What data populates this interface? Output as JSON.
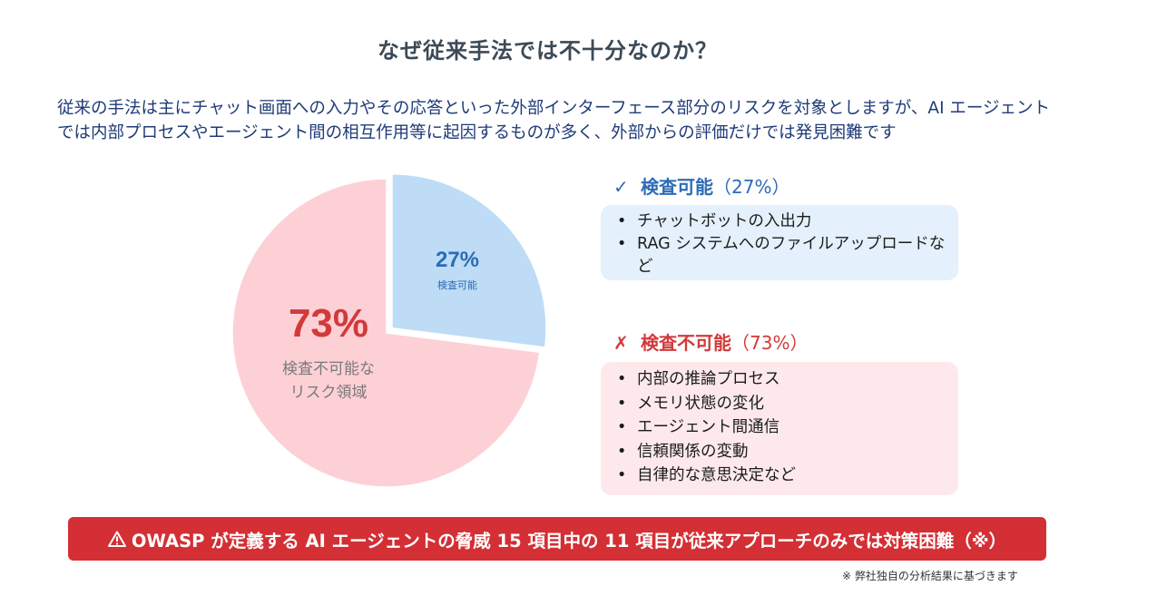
{
  "title": "なぜ従来手法では不十分なのか？",
  "lead": {
    "line1": "従来の手法は主にチャット画面への入力やその応答といった外部インターフェース部分のリスクを対象としますが、AI エージェント",
    "line2": "では内部プロセスやエージェント間の相互作用等に起因するものが多く、外部からの評価だけでは発見困難です"
  },
  "chart_data": {
    "type": "pie",
    "slices": [
      {
        "label": "検査可能",
        "value": 27,
        "value_label": "27%",
        "color": "#bedcf6",
        "exploded": true
      },
      {
        "label": "検査不可能なリスク領域",
        "value": 73,
        "value_label": "73%",
        "color": "#fdd0d6",
        "exploded": false
      }
    ],
    "slice_labels": {
      "inspectable": {
        "value": "27%",
        "text": "検査可能"
      },
      "not_inspectable": {
        "value": "73%",
        "line1": "検査不可能な",
        "line2": "リスク領域"
      }
    },
    "colors": {
      "inspectable_text": "#2d6cb5",
      "not_inspectable_value": "#d23a3a",
      "not_inspectable_text": "#7a7a7a"
    }
  },
  "inspectable": {
    "mark": "✓",
    "heading": "検査可能",
    "percent": "（27%）",
    "items": [
      "チャットボットの入出力",
      "RAG システムへのファイルアップロードなど"
    ]
  },
  "not_inspectable": {
    "mark": "✗",
    "heading": "検査不可能",
    "percent": "（73%）",
    "items": [
      "内部の推論プロセス",
      "メモリ状態の変化",
      "エージェント間通信",
      "信頼関係の変動",
      "自律的な意思決定など"
    ]
  },
  "banner": {
    "icon": "warning-icon",
    "text": "OWASP が定義する AI エージェントの脅威 15 項目中の 11 項目が従来アプローチのみでは対策困難（※）"
  },
  "footnote": "※ 弊社独自の分析結果に基づきます",
  "colors": {
    "title": "#3c4a57",
    "lead": "#1f3b78",
    "accent_blue": "#2d6cb5",
    "accent_red": "#d23a3a",
    "banner": "#d32f34",
    "panel_blue": "#e4f0fb",
    "panel_red": "#fde9ec"
  }
}
